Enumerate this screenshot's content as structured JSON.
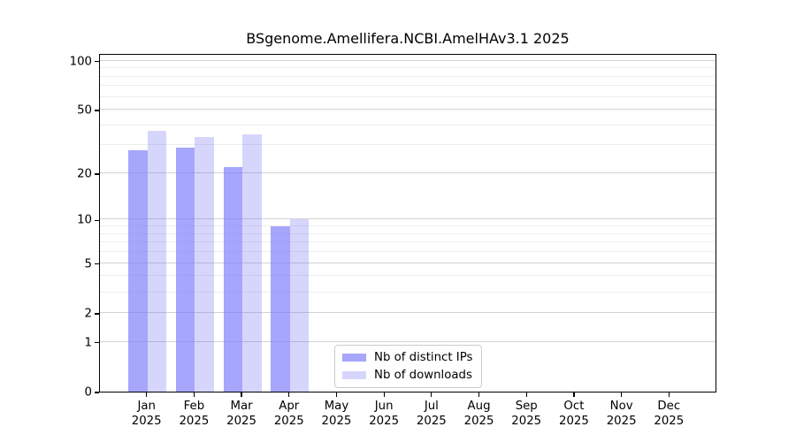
{
  "title": "BSgenome.Amellifera.NCBI.AmelHAv3.1 2025",
  "chart_data": {
    "type": "bar",
    "title": "BSgenome.Amellifera.NCBI.AmelHAv3.1 2025",
    "xlabel": "",
    "ylabel": "",
    "y_scale": "log1p",
    "grid": true,
    "legend_position": "lower center",
    "categories": [
      "Jan",
      "Feb",
      "Mar",
      "Apr",
      "May",
      "Jun",
      "Jul",
      "Aug",
      "Sep",
      "Oct",
      "Nov",
      "Dec"
    ],
    "tick_year": "2025",
    "y_ticks": [
      0,
      1,
      2,
      5,
      10,
      20,
      50,
      100
    ],
    "y_minor_ticks": [
      3,
      4,
      6,
      7,
      8,
      9,
      30,
      40,
      60,
      70,
      80,
      90
    ],
    "ylim": [
      0,
      110
    ],
    "series": [
      {
        "name": "Nb of distinct IPs",
        "color": "rgba(120,120,250,0.66)",
        "values": [
          28,
          29,
          22,
          9,
          0,
          0,
          0,
          0,
          0,
          0,
          0,
          0
        ]
      },
      {
        "name": "Nb of downloads",
        "color": "rgba(120,120,250,0.30)",
        "values": [
          37,
          34,
          35,
          10,
          0,
          0,
          0,
          0,
          0,
          0,
          0,
          0
        ]
      }
    ]
  }
}
